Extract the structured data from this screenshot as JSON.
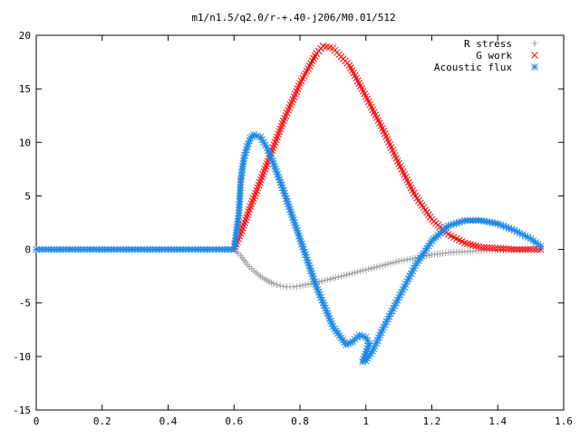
{
  "chart_data": {
    "type": "scatter",
    "title": "m1/n1.5/q2.0/r-+.40-j206/M0.01/512",
    "xlabel": "",
    "ylabel": "",
    "xlim": [
      0,
      1.6
    ],
    "ylim": [
      -15,
      20
    ],
    "x_ticks": [
      "0",
      "0.2",
      "0.4",
      "0.6",
      "0.8",
      "1",
      "1.2",
      "1.4",
      "1.6"
    ],
    "y_ticks": [
      "-15",
      "-10",
      "-5",
      "0",
      "5",
      "10",
      "15",
      "20"
    ],
    "legend_position": "top-right",
    "grid": false,
    "series": [
      {
        "name": "R stress",
        "marker": "+",
        "color": "#a0a0a0",
        "points": [
          [
            0.6,
            0
          ],
          [
            0.62,
            -0.6
          ],
          [
            0.64,
            -1.4
          ],
          [
            0.66,
            -2.0
          ],
          [
            0.68,
            -2.5
          ],
          [
            0.7,
            -2.9
          ],
          [
            0.72,
            -3.2
          ],
          [
            0.74,
            -3.4
          ],
          [
            0.76,
            -3.5
          ],
          [
            0.78,
            -3.5
          ],
          [
            0.8,
            -3.4
          ],
          [
            0.85,
            -3.1
          ],
          [
            0.9,
            -2.7
          ],
          [
            0.95,
            -2.3
          ],
          [
            1.0,
            -1.9
          ],
          [
            1.05,
            -1.5
          ],
          [
            1.1,
            -1.1
          ],
          [
            1.15,
            -0.8
          ],
          [
            1.2,
            -0.5
          ],
          [
            1.25,
            -0.3
          ],
          [
            1.3,
            -0.2
          ],
          [
            1.35,
            -0.1
          ],
          [
            1.4,
            -0.1
          ],
          [
            1.45,
            0
          ],
          [
            1.5,
            0
          ],
          [
            1.53,
            0
          ]
        ]
      },
      {
        "name": "G work",
        "marker": "x",
        "color": "#ff0000",
        "points": [
          [
            0.6,
            0
          ],
          [
            0.62,
            1.5
          ],
          [
            0.65,
            4.0
          ],
          [
            0.7,
            8.0
          ],
          [
            0.75,
            12.0
          ],
          [
            0.8,
            15.5
          ],
          [
            0.85,
            18.3
          ],
          [
            0.87,
            19.0
          ],
          [
            0.9,
            18.8
          ],
          [
            0.95,
            17.2
          ],
          [
            1.0,
            14.3
          ],
          [
            1.05,
            11.3
          ],
          [
            1.1,
            8.0
          ],
          [
            1.15,
            5.0
          ],
          [
            1.2,
            2.8
          ],
          [
            1.25,
            1.4
          ],
          [
            1.3,
            0.6
          ],
          [
            1.35,
            0.2
          ],
          [
            1.4,
            0.1
          ],
          [
            1.45,
            0
          ],
          [
            1.5,
            0
          ],
          [
            1.53,
            0
          ]
        ]
      },
      {
        "name": "Acoustic flux",
        "marker": "*",
        "color": "#1e88e5",
        "points": [
          [
            0,
            0
          ],
          [
            0.1,
            0
          ],
          [
            0.2,
            0
          ],
          [
            0.3,
            0
          ],
          [
            0.4,
            0
          ],
          [
            0.5,
            0
          ],
          [
            0.6,
            0
          ],
          [
            0.615,
            3.4
          ],
          [
            0.62,
            6.3
          ],
          [
            0.625,
            7.5
          ],
          [
            0.63,
            8.5
          ],
          [
            0.64,
            9.6
          ],
          [
            0.65,
            10.4
          ],
          [
            0.66,
            10.7
          ],
          [
            0.68,
            10.5
          ],
          [
            0.7,
            9.5
          ],
          [
            0.72,
            8.0
          ],
          [
            0.75,
            5.5
          ],
          [
            0.8,
            1.0
          ],
          [
            0.85,
            -3.5
          ],
          [
            0.9,
            -7.2
          ],
          [
            0.94,
            -8.9
          ],
          [
            0.96,
            -8.6
          ],
          [
            0.98,
            -8.0
          ],
          [
            1.0,
            -8.2
          ],
          [
            1.01,
            -8.8
          ],
          [
            0.99,
            -10.5
          ],
          [
            1.0,
            -10.4
          ],
          [
            1.02,
            -9.5
          ],
          [
            1.05,
            -7.5
          ],
          [
            1.1,
            -4.5
          ],
          [
            1.15,
            -1.5
          ],
          [
            1.2,
            0.8
          ],
          [
            1.25,
            2.2
          ],
          [
            1.3,
            2.7
          ],
          [
            1.35,
            2.7
          ],
          [
            1.4,
            2.4
          ],
          [
            1.45,
            1.8
          ],
          [
            1.5,
            1.0
          ],
          [
            1.53,
            0.3
          ]
        ]
      }
    ]
  }
}
